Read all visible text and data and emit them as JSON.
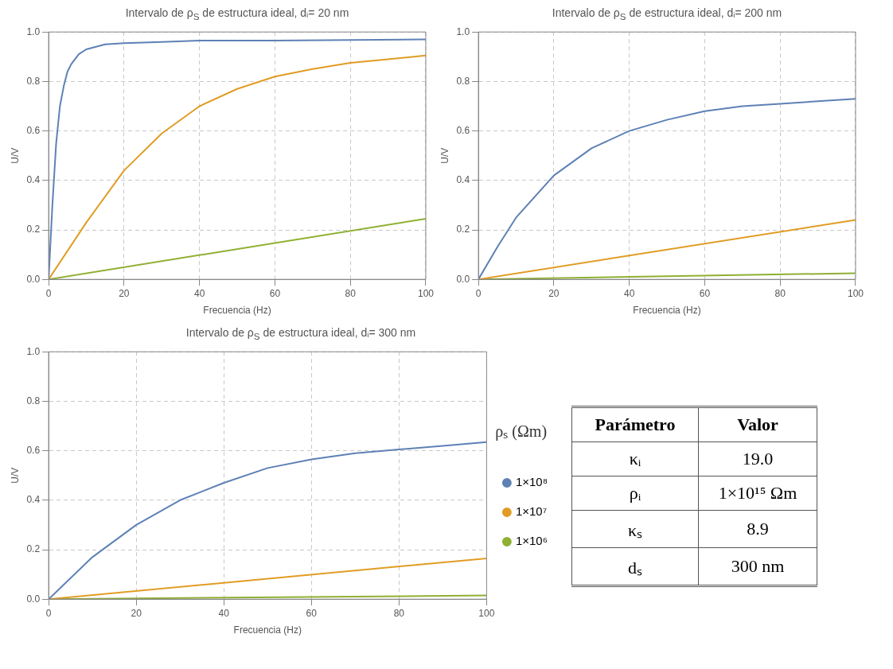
{
  "chart_data": [
    {
      "type": "line",
      "title": "Intervalo de ρ$_{S}$ de estructura ideal, dᵢ= 20 nm",
      "xlabel": "Frecuencia (Hz)",
      "ylabel": "U/V",
      "xlim": [
        0,
        100
      ],
      "ylim": [
        0,
        1
      ],
      "xticks": [
        0,
        20,
        40,
        60,
        80,
        100
      ],
      "yticks": [
        {
          "value": 0,
          "label": "0.0"
        },
        {
          "value": 0.2,
          "label": "0.2"
        },
        {
          "value": 0.4,
          "label": "0.4"
        },
        {
          "value": 0.6,
          "label": "0.6"
        },
        {
          "value": 0.8,
          "label": "0.8"
        },
        {
          "value": 1,
          "label": "1.0"
        }
      ],
      "grid": true,
      "marker": "none",
      "line_style": "solid",
      "series": [
        {
          "color": "#5e81b5",
          "x": [
            0,
            1,
            2,
            3,
            4,
            5,
            6,
            8,
            10,
            15,
            20,
            30,
            40,
            60,
            100
          ],
          "values": [
            0,
            0.3,
            0.55,
            0.7,
            0.78,
            0.84,
            0.87,
            0.91,
            0.93,
            0.95,
            0.955,
            0.96,
            0.965,
            0.965,
            0.97
          ]
        },
        {
          "color": "#e19c24",
          "x": [
            0,
            10,
            20,
            30,
            40,
            50,
            60,
            70,
            80,
            90,
            100
          ],
          "values": [
            0,
            0.23,
            0.44,
            0.59,
            0.7,
            0.77,
            0.82,
            0.85,
            0.875,
            0.89,
            0.905
          ]
        },
        {
          "color": "#8fb032",
          "x": [
            0,
            100
          ],
          "values": [
            0,
            0.245
          ]
        }
      ]
    },
    {
      "type": "line",
      "title": "Intervalo de ρ$_{S}$ de estructura ideal, dᵢ= 200 nm",
      "xlabel": "Frecuencia (Hz)",
      "ylabel": "U/V",
      "xlim": [
        0,
        100
      ],
      "ylim": [
        0,
        1
      ],
      "xticks": [
        0,
        20,
        40,
        60,
        80,
        100
      ],
      "yticks": [
        {
          "value": 0,
          "label": "0.0"
        },
        {
          "value": 0.2,
          "label": "0.2"
        },
        {
          "value": 0.4,
          "label": "0.4"
        },
        {
          "value": 0.6,
          "label": "0.6"
        },
        {
          "value": 0.8,
          "label": "0.8"
        },
        {
          "value": 1,
          "label": "1.0"
        }
      ],
      "grid": true,
      "marker": "none",
      "line_style": "solid",
      "series": [
        {
          "color": "#5e81b5",
          "x": [
            0,
            5,
            10,
            20,
            30,
            40,
            50,
            60,
            70,
            80,
            90,
            100
          ],
          "values": [
            0,
            0.13,
            0.25,
            0.42,
            0.53,
            0.6,
            0.645,
            0.68,
            0.7,
            0.71,
            0.72,
            0.73
          ]
        },
        {
          "color": "#e19c24",
          "x": [
            0,
            100
          ],
          "values": [
            0,
            0.24
          ]
        },
        {
          "color": "#8fb032",
          "x": [
            0,
            100
          ],
          "values": [
            0,
            0.025
          ]
        }
      ]
    },
    {
      "type": "line",
      "title": "Intervalo de ρ$_{S}$ de estructura ideal, dᵢ= 300 nm",
      "xlabel": "Frecuencia (Hz)",
      "ylabel": "U/V",
      "xlim": [
        0,
        100
      ],
      "ylim": [
        0,
        1
      ],
      "xticks": [
        0,
        20,
        40,
        60,
        80,
        100
      ],
      "yticks": [
        {
          "value": 0,
          "label": "0.0"
        },
        {
          "value": 0.2,
          "label": "0.2"
        },
        {
          "value": 0.4,
          "label": "0.4"
        },
        {
          "value": 0.6,
          "label": "0.6"
        },
        {
          "value": 0.8,
          "label": "0.8"
        },
        {
          "value": 1,
          "label": "1.0"
        }
      ],
      "grid": true,
      "marker": "none",
      "line_style": "solid",
      "legend": "right",
      "legend_title": "ρₛ (Ωm)",
      "series": [
        {
          "name": "1×10⁸",
          "color": "#5e81b5",
          "x": [
            0,
            10,
            20,
            30,
            40,
            50,
            60,
            70,
            80,
            90,
            100
          ],
          "values": [
            0,
            0.17,
            0.3,
            0.4,
            0.47,
            0.53,
            0.565,
            0.59,
            0.605,
            0.62,
            0.635
          ]
        },
        {
          "name": "1×10⁷",
          "color": "#e19c24",
          "x": [
            0,
            100
          ],
          "values": [
            0,
            0.165
          ]
        },
        {
          "name": "1×10⁶",
          "color": "#8fb032",
          "x": [
            0,
            100
          ],
          "values": [
            0,
            0.015
          ]
        }
      ]
    },
    {
      "type": "other",
      "annotations": [
        "Parámetro",
        "Valor",
        "κᵢ",
        "19.0",
        "ρᵢ",
        "1×10¹⁵ Ωm",
        "κₛ",
        "8.9",
        "dₛ",
        "300 nm"
      ]
    }
  ]
}
